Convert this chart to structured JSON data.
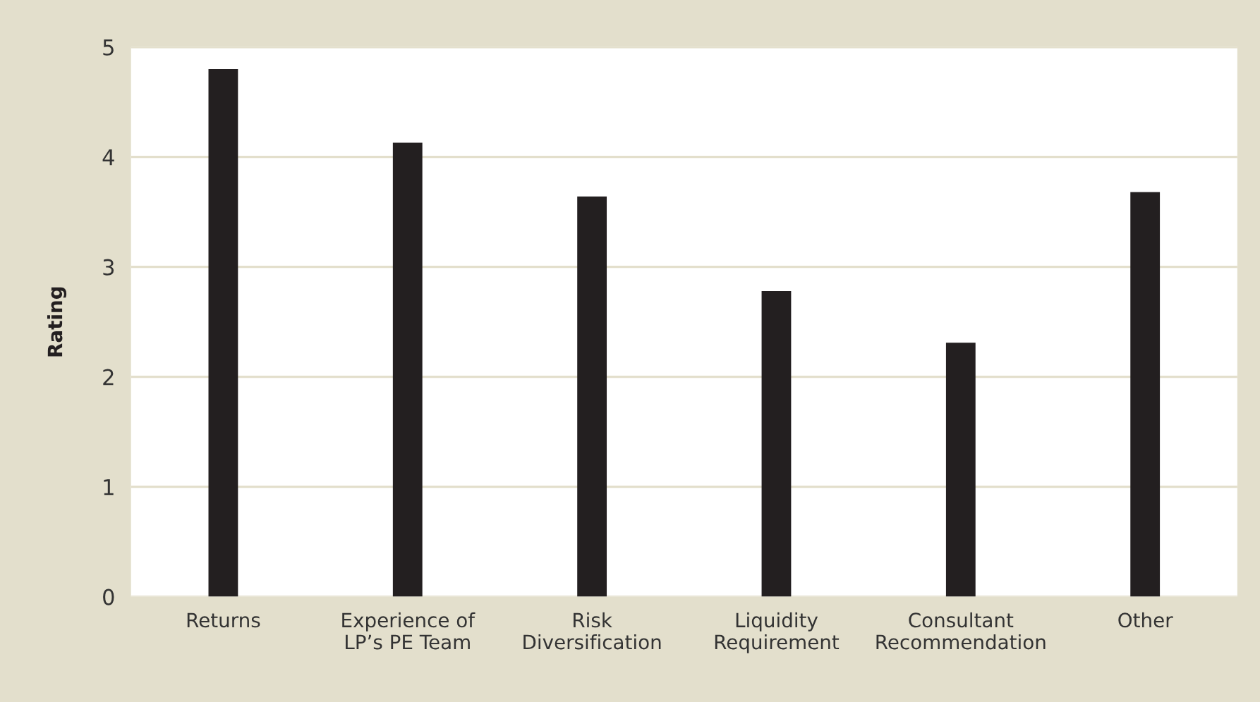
{
  "chart_data": {
    "type": "bar",
    "ylabel": "Rating",
    "categories": [
      "Returns",
      "Experience of\nLP’s PE Team",
      "Risk\nDiversification",
      "Liquidity\nRequirement",
      "Consultant\nRecommendation",
      "Other"
    ],
    "values": [
      4.8,
      4.13,
      3.64,
      2.78,
      2.31,
      3.68
    ],
    "color": "#231f20",
    "ylim": [
      0,
      5
    ],
    "yticks": [
      0,
      1,
      2,
      3,
      4,
      5
    ],
    "grid": "y"
  }
}
